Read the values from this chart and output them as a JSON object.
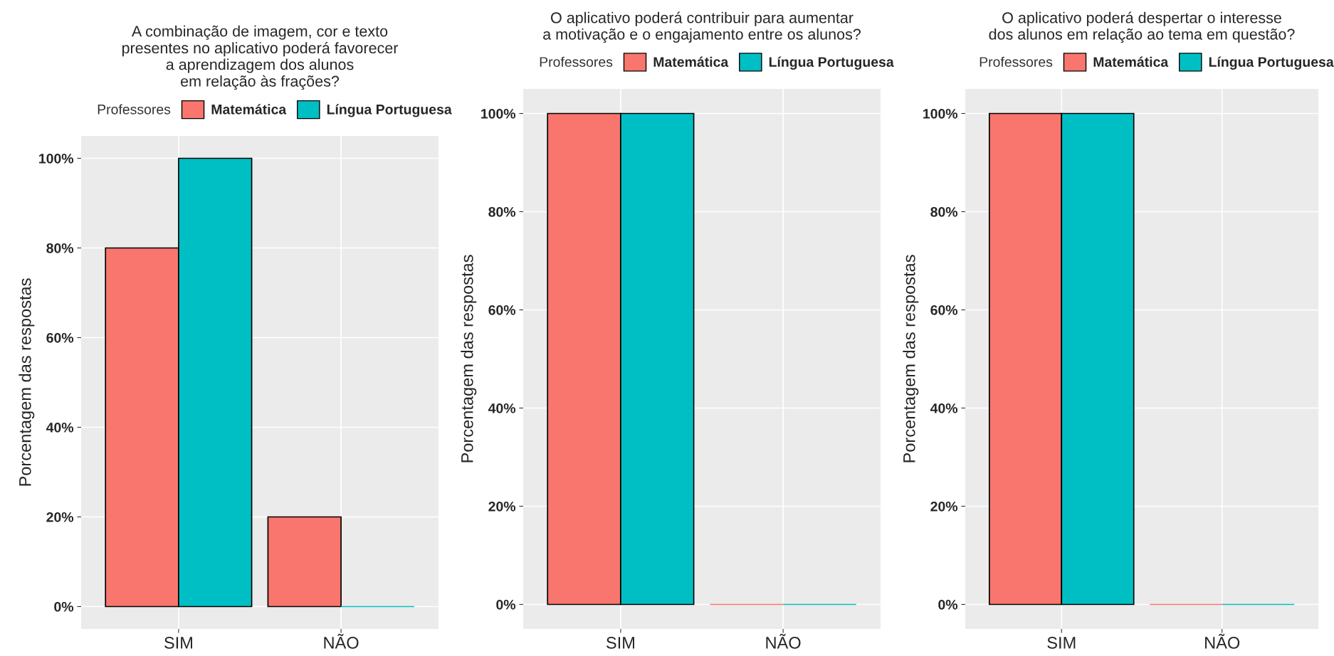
{
  "chart_data": [
    {
      "type": "bar",
      "title": "A combinação de imagem, cor e texto\npresentes no aplicativo poderá favorecer\na aprendizagem dos alunos\nem relação às frações?",
      "ylabel": "Porcentagem das respostas",
      "legend_title": "Professores",
      "categories": [
        "SIM",
        "NÃO"
      ],
      "series": [
        {
          "name": "Matemática",
          "color": "#f8766d",
          "values": [
            80,
            20
          ]
        },
        {
          "name": "Língua Portuguesa",
          "color": "#00bfc4",
          "values": [
            100,
            0
          ]
        }
      ],
      "ylim": [
        -5,
        105
      ],
      "yticks": [
        {
          "value": 0,
          "label": "0%"
        },
        {
          "value": 20,
          "label": "20%"
        },
        {
          "value": 40,
          "label": "40%"
        },
        {
          "value": 60,
          "label": "60%"
        },
        {
          "value": 80,
          "label": "80%"
        },
        {
          "value": 100,
          "label": "100%"
        }
      ],
      "grid": true,
      "legend": "top"
    },
    {
      "type": "bar",
      "title": "O aplicativo poderá contribuir para aumentar\na motivação e o engajamento entre os alunos?",
      "ylabel": "Porcentagem das respostas",
      "legend_title": "Professores",
      "categories": [
        "SIM",
        "NÃO"
      ],
      "series": [
        {
          "name": "Matemática",
          "color": "#f8766d",
          "values": [
            100,
            0
          ]
        },
        {
          "name": "Língua Portuguesa",
          "color": "#00bfc4",
          "values": [
            100,
            0
          ]
        }
      ],
      "ylim": [
        -5,
        105
      ],
      "yticks": [
        {
          "value": 0,
          "label": "0%"
        },
        {
          "value": 20,
          "label": "20%"
        },
        {
          "value": 40,
          "label": "40%"
        },
        {
          "value": 60,
          "label": "60%"
        },
        {
          "value": 80,
          "label": "80%"
        },
        {
          "value": 100,
          "label": "100%"
        }
      ],
      "grid": true,
      "legend": "top"
    },
    {
      "type": "bar",
      "title": "O aplicativo poderá despertar o interesse\ndos alunos em relação ao tema em questão?",
      "ylabel": "Porcentagem das respostas",
      "legend_title": "Professores",
      "categories": [
        "SIM",
        "NÃO"
      ],
      "series": [
        {
          "name": "Matemática",
          "color": "#f8766d",
          "values": [
            100,
            0
          ]
        },
        {
          "name": "Língua Portuguesa",
          "color": "#00bfc4",
          "values": [
            100,
            0
          ]
        }
      ],
      "ylim": [
        -5,
        105
      ],
      "yticks": [
        {
          "value": 0,
          "label": "0%"
        },
        {
          "value": 20,
          "label": "20%"
        },
        {
          "value": 40,
          "label": "40%"
        },
        {
          "value": 60,
          "label": "60%"
        },
        {
          "value": 80,
          "label": "80%"
        },
        {
          "value": 100,
          "label": "100%"
        }
      ],
      "grid": true,
      "legend": "top"
    }
  ]
}
